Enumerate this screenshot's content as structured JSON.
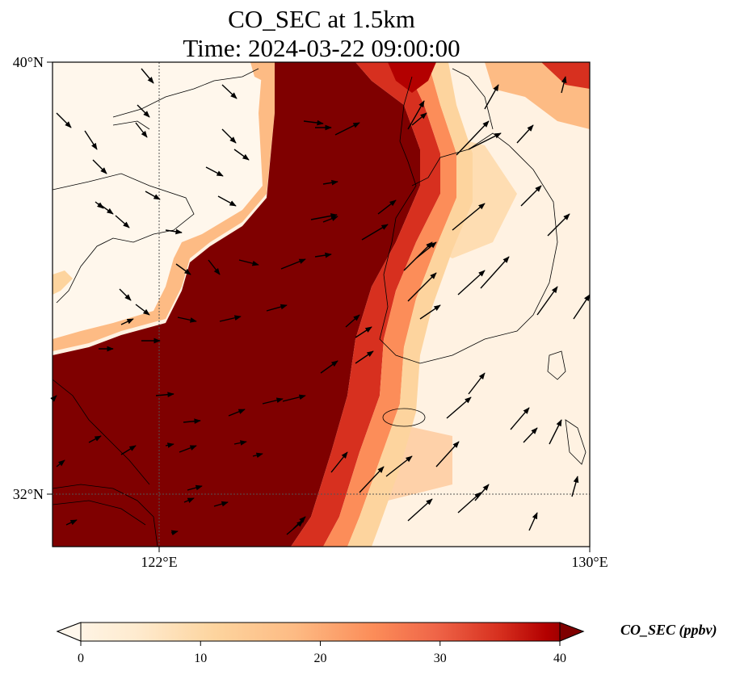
{
  "title_line1": "CO_SEC at 1.5km",
  "title_line2": "Time: 2024-03-22 09:00:00",
  "lat_labels": [
    "40°N",
    "32°N"
  ],
  "lon_labels": [
    "122°E",
    "130°E"
  ],
  "colorbar": {
    "label": "CO_SEC (ppbv)",
    "ticks": [
      "0",
      "10",
      "20",
      "30",
      "40"
    ],
    "range": [
      0,
      40
    ],
    "cmap": "OrRd",
    "extend": "both"
  },
  "map": {
    "extent_lon": [
      120,
      130
    ],
    "extent_lat": [
      31,
      40
    ],
    "gridlines_lon": [
      122
    ],
    "gridlines_lat": [
      32
    ],
    "plume_core_color": "#7f0000",
    "background_low_color": "#fff7ec"
  }
}
